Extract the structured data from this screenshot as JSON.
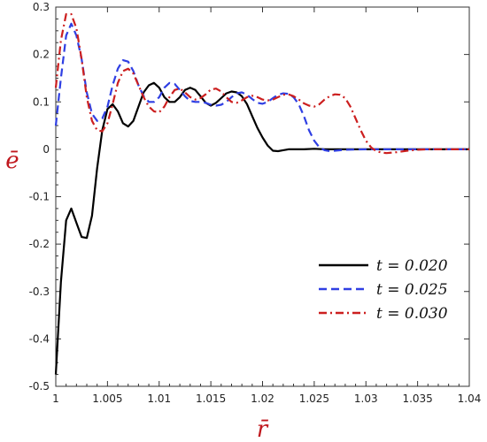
{
  "chart_data": {
    "type": "line",
    "xlabel": "r̄",
    "ylabel": "ē",
    "xlim": [
      1,
      1.04
    ],
    "ylim": [
      -0.5,
      0.3
    ],
    "xticks": [
      "1",
      "1.005",
      "1.01",
      "1.015",
      "1.02",
      "1.025",
      "1.03",
      "1.035",
      "1.04"
    ],
    "yticks": [
      "0.3",
      "0.2",
      "0.1",
      "0",
      "-0.1",
      "-0.2",
      "-0.3",
      "-0.4",
      "-0.5"
    ],
    "grid": false,
    "legend_position": "bottom-right",
    "series": [
      {
        "name": "t = 0.020",
        "color": "#000000",
        "dash": "solid",
        "x": [
          1.0,
          1.0005,
          1.001,
          1.0015,
          1.002,
          1.0025,
          1.003,
          1.0035,
          1.004,
          1.0045,
          1.005,
          1.0055,
          1.006,
          1.0065,
          1.007,
          1.0075,
          1.008,
          1.0085,
          1.009,
          1.0095,
          1.01,
          1.0105,
          1.011,
          1.0115,
          1.012,
          1.0125,
          1.013,
          1.0135,
          1.014,
          1.0145,
          1.015,
          1.0155,
          1.016,
          1.0165,
          1.017,
          1.0175,
          1.018,
          1.0185,
          1.019,
          1.0195,
          1.02,
          1.0205,
          1.021,
          1.0215,
          1.022,
          1.0225,
          1.023,
          1.024,
          1.025,
          1.026,
          1.028,
          1.03,
          1.032,
          1.035,
          1.038,
          1.04
        ],
        "y": [
          -0.475,
          -0.28,
          -0.15,
          -0.125,
          -0.155,
          -0.185,
          -0.187,
          -0.14,
          -0.04,
          0.04,
          0.085,
          0.095,
          0.08,
          0.055,
          0.048,
          0.06,
          0.09,
          0.12,
          0.135,
          0.14,
          0.13,
          0.11,
          0.1,
          0.1,
          0.11,
          0.125,
          0.13,
          0.125,
          0.112,
          0.098,
          0.092,
          0.098,
          0.108,
          0.118,
          0.122,
          0.12,
          0.112,
          0.095,
          0.07,
          0.045,
          0.025,
          0.008,
          -0.003,
          -0.004,
          -0.002,
          0.0,
          0.0,
          0.0,
          0.001,
          0.0,
          0.0,
          0.0,
          0.0,
          0.0,
          0.0,
          0.0
        ]
      },
      {
        "name": "t = 0.025",
        "color": "#2f3fe3",
        "dash": "dashed",
        "x": [
          1.0,
          1.0005,
          1.001,
          1.0015,
          1.002,
          1.0025,
          1.003,
          1.0035,
          1.004,
          1.0045,
          1.005,
          1.0055,
          1.006,
          1.0065,
          1.007,
          1.0075,
          1.008,
          1.0085,
          1.009,
          1.0095,
          1.01,
          1.0105,
          1.011,
          1.0115,
          1.012,
          1.0125,
          1.013,
          1.0135,
          1.014,
          1.0145,
          1.015,
          1.0155,
          1.016,
          1.0165,
          1.017,
          1.0175,
          1.018,
          1.0185,
          1.019,
          1.0195,
          1.02,
          1.0205,
          1.021,
          1.0215,
          1.022,
          1.0225,
          1.023,
          1.0235,
          1.024,
          1.0245,
          1.025,
          1.0255,
          1.026,
          1.0265,
          1.027,
          1.028,
          1.03,
          1.032,
          1.034,
          1.036,
          1.038,
          1.04
        ],
        "y": [
          0.05,
          0.15,
          0.24,
          0.265,
          0.24,
          0.19,
          0.12,
          0.075,
          0.06,
          0.065,
          0.09,
          0.135,
          0.17,
          0.188,
          0.185,
          0.165,
          0.135,
          0.112,
          0.1,
          0.1,
          0.11,
          0.13,
          0.14,
          0.138,
          0.125,
          0.112,
          0.102,
          0.1,
          0.1,
          0.098,
          0.094,
          0.092,
          0.094,
          0.1,
          0.11,
          0.118,
          0.12,
          0.115,
          0.106,
          0.098,
          0.096,
          0.1,
          0.108,
          0.115,
          0.118,
          0.117,
          0.11,
          0.095,
          0.07,
          0.04,
          0.018,
          0.004,
          -0.002,
          -0.004,
          -0.003,
          -0.001,
          0.0,
          0.0,
          0.0,
          0.0,
          0.0,
          0.0
        ]
      },
      {
        "name": "t = 0.030",
        "color": "#cc1f1f",
        "dash": "dashdot",
        "x": [
          1.0,
          1.0005,
          1.001,
          1.0015,
          1.002,
          1.0025,
          1.003,
          1.0035,
          1.004,
          1.0045,
          1.005,
          1.0055,
          1.006,
          1.0065,
          1.007,
          1.0075,
          1.008,
          1.0085,
          1.009,
          1.0095,
          1.01,
          1.0105,
          1.011,
          1.0115,
          1.012,
          1.0125,
          1.013,
          1.0135,
          1.014,
          1.0145,
          1.015,
          1.0155,
          1.016,
          1.0165,
          1.017,
          1.0175,
          1.018,
          1.0185,
          1.019,
          1.0195,
          1.02,
          1.0205,
          1.021,
          1.0215,
          1.022,
          1.0225,
          1.023,
          1.0235,
          1.024,
          1.0245,
          1.025,
          1.0255,
          1.026,
          1.0265,
          1.027,
          1.0275,
          1.028,
          1.0285,
          1.029,
          1.0295,
          1.03,
          1.0305,
          1.031,
          1.0315,
          1.032,
          1.033,
          1.034,
          1.035,
          1.036,
          1.038,
          1.04
        ],
        "y": [
          0.13,
          0.23,
          0.285,
          0.285,
          0.255,
          0.19,
          0.11,
          0.06,
          0.04,
          0.038,
          0.055,
          0.095,
          0.14,
          0.165,
          0.17,
          0.16,
          0.135,
          0.11,
          0.09,
          0.08,
          0.078,
          0.09,
          0.11,
          0.125,
          0.128,
          0.12,
          0.11,
          0.105,
          0.108,
          0.116,
          0.126,
          0.128,
          0.122,
          0.11,
          0.1,
          0.098,
          0.103,
          0.11,
          0.113,
          0.11,
          0.105,
          0.103,
          0.105,
          0.11,
          0.115,
          0.116,
          0.112,
          0.105,
          0.097,
          0.092,
          0.09,
          0.095,
          0.105,
          0.112,
          0.116,
          0.115,
          0.108,
          0.09,
          0.065,
          0.04,
          0.018,
          0.004,
          -0.004,
          -0.007,
          -0.008,
          -0.006,
          -0.003,
          -0.001,
          0.0,
          0.0,
          0.0
        ]
      }
    ]
  }
}
